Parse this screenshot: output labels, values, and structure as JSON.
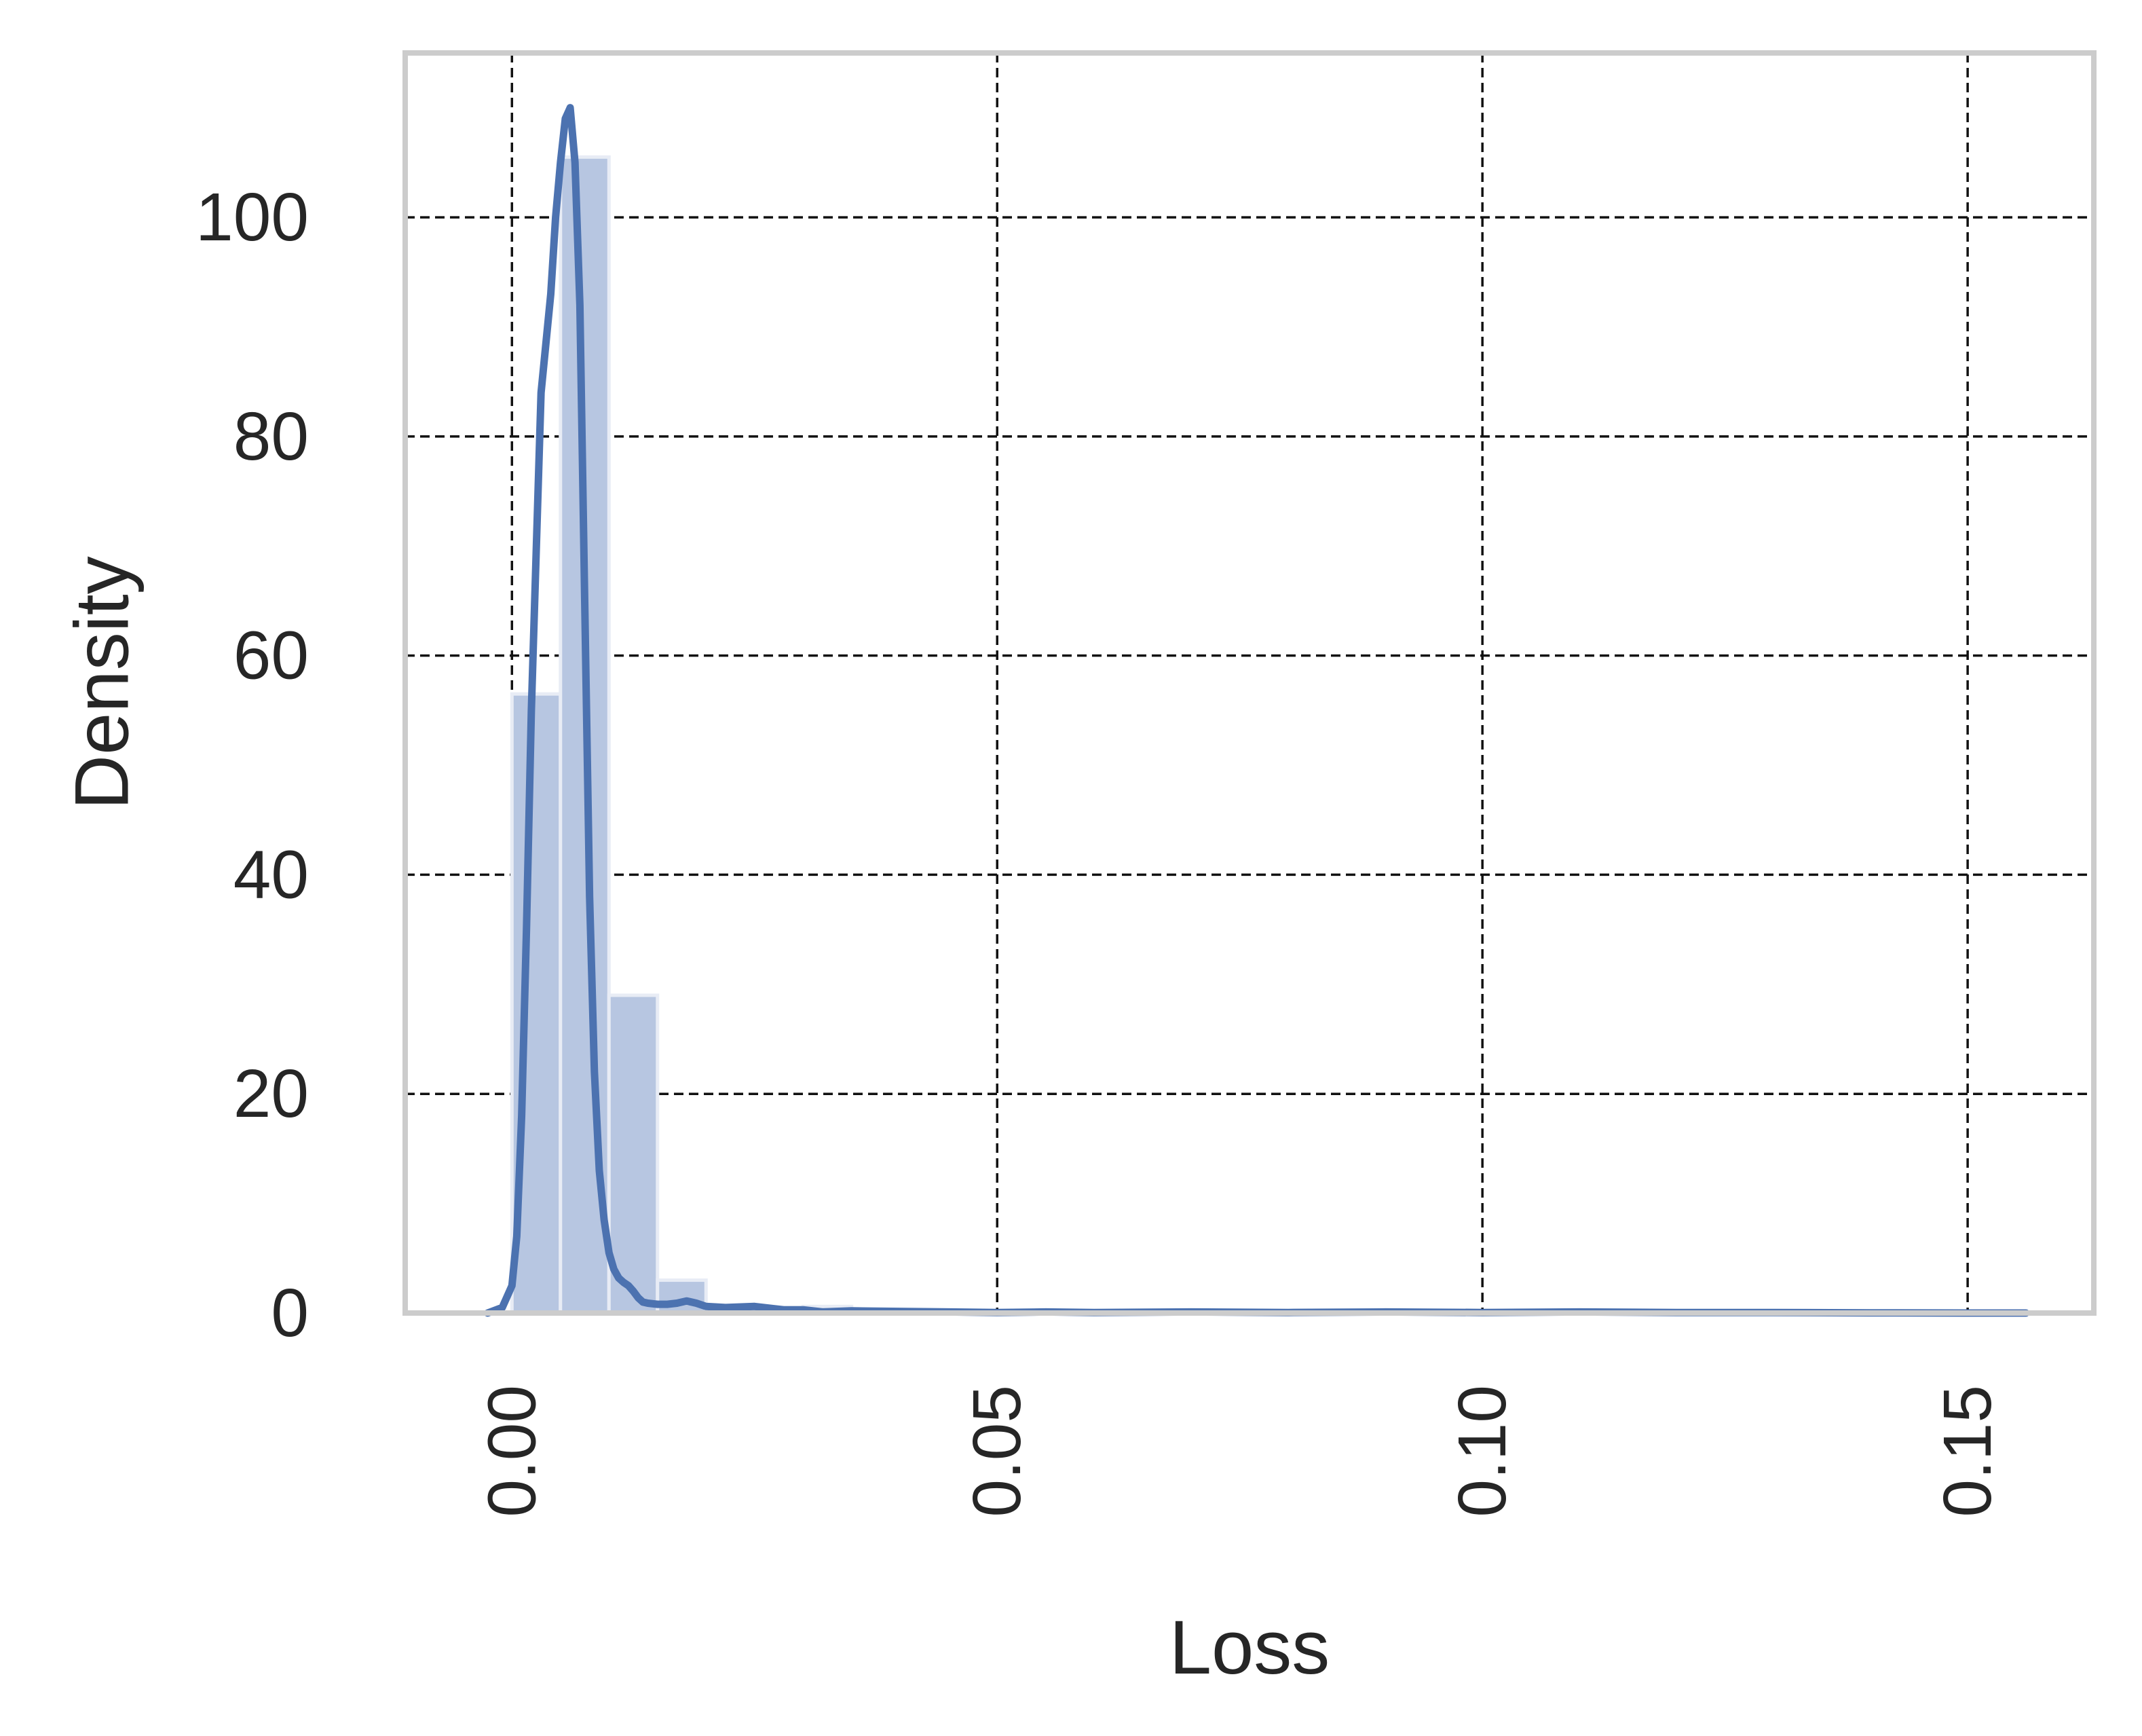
{
  "chart_data": {
    "type": "bar",
    "subtype": "histogram-with-kde",
    "xlabel": "Loss",
    "ylabel": "Density",
    "xlim": [
      -0.011,
      0.163
    ],
    "ylim": [
      0,
      115
    ],
    "x_ticks": [
      0.0,
      0.05,
      0.1,
      0.15
    ],
    "x_tick_labels": [
      "0.00",
      "0.05",
      "0.10",
      "0.15"
    ],
    "x_tick_rotation": 90,
    "y_ticks": [
      0,
      20,
      40,
      60,
      80,
      100
    ],
    "y_tick_labels": [
      "0",
      "20",
      "40",
      "60",
      "80",
      "100"
    ],
    "grid": true,
    "grid_style": "dashed",
    "legend": "none",
    "colors": {
      "bar_fill": "#b7c6e1",
      "kde_line": "#4c72b0",
      "frame": "#cccccc",
      "grid": "#111111",
      "text": "#262626"
    },
    "histogram": {
      "bin_width": 0.005,
      "bins": [
        {
          "x0": 0.0,
          "x1": 0.005,
          "value": 56.5
        },
        {
          "x0": 0.005,
          "x1": 0.01,
          "value": 105.5
        },
        {
          "x0": 0.01,
          "x1": 0.015,
          "value": 29
        },
        {
          "x0": 0.015,
          "x1": 0.02,
          "value": 3
        },
        {
          "x0": 0.02,
          "x1": 0.025,
          "value": 0.6
        },
        {
          "x0": 0.025,
          "x1": 0.03,
          "value": 0.5
        },
        {
          "x0": 0.03,
          "x1": 0.035,
          "value": 0.6
        },
        {
          "x0": 0.035,
          "x1": 0.04,
          "value": 0.3
        },
        {
          "x0": 0.04,
          "x1": 0.045,
          "value": 0.2
        },
        {
          "x0": 0.045,
          "x1": 0.05,
          "value": 0.1
        }
      ]
    },
    "kde": {
      "x": [
        -0.0025,
        -0.001,
        0.0,
        0.0005,
        0.001,
        0.0015,
        0.002,
        0.003,
        0.004,
        0.0045,
        0.005,
        0.0055,
        0.006,
        0.0065,
        0.007,
        0.0075,
        0.008,
        0.0085,
        0.009,
        0.0095,
        0.01,
        0.0105,
        0.011,
        0.0115,
        0.012,
        0.0125,
        0.013,
        0.0135,
        0.014,
        0.015,
        0.016,
        0.017,
        0.018,
        0.019,
        0.02,
        0.022,
        0.025,
        0.028,
        0.03,
        0.032,
        0.035,
        0.04,
        0.045,
        0.05,
        0.055,
        0.06,
        0.07,
        0.08,
        0.09,
        0.1,
        0.11,
        0.12,
        0.13,
        0.14,
        0.15,
        0.156
      ],
      "y": [
        0,
        0.5,
        2.5,
        7,
        18,
        35,
        55,
        84,
        93,
        100,
        105,
        109,
        110,
        105,
        92,
        65,
        38,
        22,
        13,
        8.5,
        5.5,
        4,
        3.2,
        2.8,
        2.5,
        2,
        1.4,
        1.0,
        0.9,
        0.8,
        0.8,
        0.9,
        1.1,
        0.9,
        0.6,
        0.5,
        0.6,
        0.3,
        0.3,
        0.1,
        0.2,
        0.15,
        0.1,
        0.05,
        0.1,
        0.05,
        0.1,
        0.05,
        0.1,
        0.05,
        0.1,
        0.05,
        0.05,
        0.02,
        0.0,
        0.0
      ]
    }
  }
}
